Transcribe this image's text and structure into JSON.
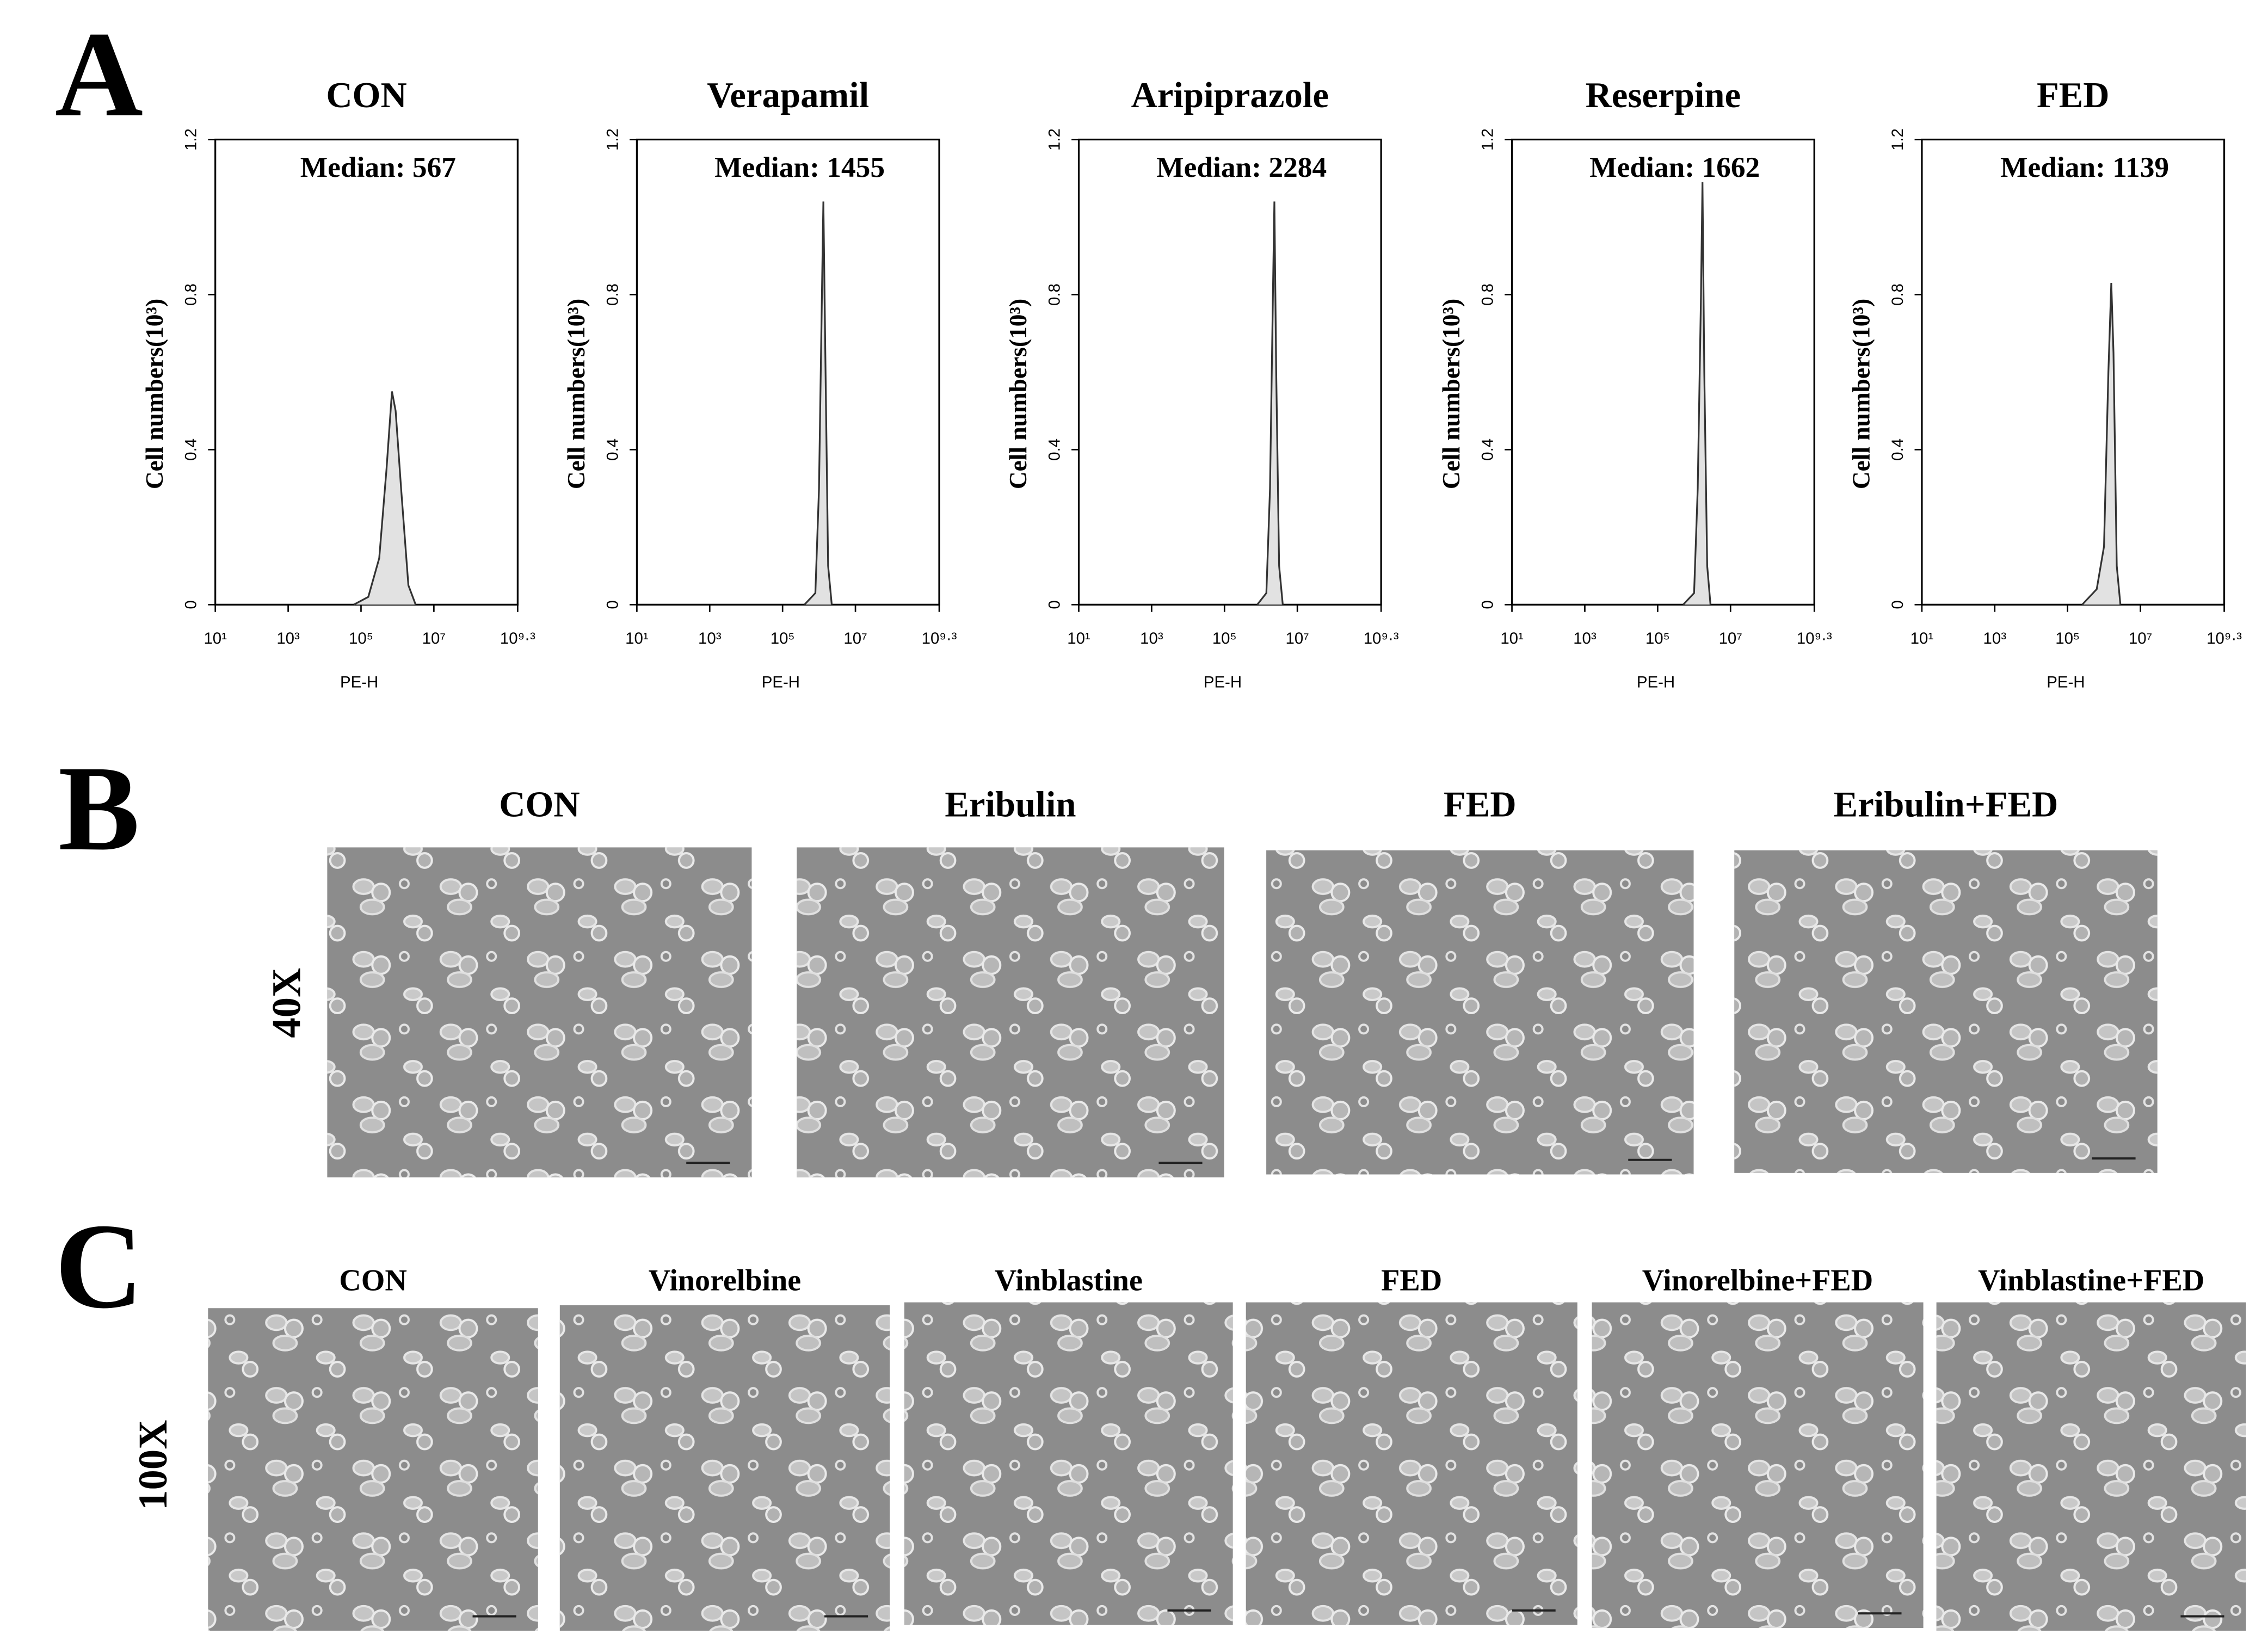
{
  "chart_data": [
    {
      "type": "area",
      "title": "CON",
      "annotation": "Median: 567",
      "y_label": "Cell numbers(10³)",
      "x_label": "PE-H",
      "xscale": "log",
      "color": "#e2e2e2",
      "line_color": "#333333",
      "x": [
        63096,
        158489,
        316228,
        501187,
        707946,
        891251,
        1258925,
        1995262,
        3162278
      ],
      "values": [
        0,
        0.02,
        0.12,
        0.35,
        0.55,
        0.5,
        0.3,
        0.05,
        0
      ],
      "xlim": [
        10,
        1995262315
      ],
      "xticks": [
        {
          "value": 10,
          "label": "10¹"
        },
        {
          "value": 1000,
          "label": "10³"
        },
        {
          "value": 100000,
          "label": "10⁵"
        },
        {
          "value": 10000000,
          "label": "10⁷"
        },
        {
          "value": 1995262315,
          "label": "10⁹·³"
        }
      ],
      "ylim": [
        0,
        1.2
      ],
      "yticks": [
        0,
        0.4,
        0.8,
        1.2
      ]
    },
    {
      "type": "area",
      "title": "Verapamil",
      "annotation": "Median: 1455",
      "y_label": "Cell numbers(10³)",
      "x_label": "PE-H",
      "xscale": "log",
      "color": "#e2e2e2",
      "line_color": "#333333",
      "x": [
        398107,
        794328,
        1000000,
        1202264,
        1318257,
        1513561,
        1778279,
        2238721
      ],
      "values": [
        0,
        0.03,
        0.3,
        0.8,
        1.04,
        0.6,
        0.1,
        0
      ],
      "xlim": [
        10,
        1995262315
      ],
      "xticks": [
        {
          "value": 10,
          "label": "10¹"
        },
        {
          "value": 1000,
          "label": "10³"
        },
        {
          "value": 100000,
          "label": "10⁵"
        },
        {
          "value": 10000000,
          "label": "10⁷"
        },
        {
          "value": 1995262315,
          "label": "10⁹·³"
        }
      ],
      "ylim": [
        0,
        1.2
      ],
      "yticks": [
        0,
        0.4,
        0.8,
        1.2
      ]
    },
    {
      "type": "area",
      "title": "Aripiprazole",
      "annotation": "Median: 2284",
      "y_label": "Cell numbers(10³)",
      "x_label": "PE-H",
      "xscale": "log",
      "color": "#e2e2e2",
      "line_color": "#333333",
      "x": [
        794328,
        1412538,
        1778279,
        2137962,
        2344229,
        2630268,
        3162278,
        3981072
      ],
      "values": [
        0,
        0.03,
        0.3,
        0.8,
        1.04,
        0.6,
        0.1,
        0
      ],
      "xlim": [
        10,
        1995262315
      ],
      "xticks": [
        {
          "value": 10,
          "label": "10¹"
        },
        {
          "value": 1000,
          "label": "10³"
        },
        {
          "value": 100000,
          "label": "10⁵"
        },
        {
          "value": 10000000,
          "label": "10⁷"
        },
        {
          "value": 1995262315,
          "label": "10⁹·³"
        }
      ],
      "ylim": [
        0,
        1.2
      ],
      "yticks": [
        0,
        0.4,
        0.8,
        1.2
      ]
    },
    {
      "type": "area",
      "title": "Reserpine",
      "annotation": "Median: 1662",
      "y_label": "Cell numbers(10³)",
      "x_label": "PE-H",
      "xscale": "log",
      "color": "#e2e2e2",
      "line_color": "#333333",
      "x": [
        501187,
        1000000,
        1258925,
        1548817,
        1698244,
        1905461,
        2290868,
        2818383
      ],
      "values": [
        0,
        0.03,
        0.3,
        0.8,
        1.09,
        0.6,
        0.1,
        0
      ],
      "xlim": [
        10,
        1995262315
      ],
      "xticks": [
        {
          "value": 10,
          "label": "10¹"
        },
        {
          "value": 1000,
          "label": "10³"
        },
        {
          "value": 100000,
          "label": "10⁵"
        },
        {
          "value": 10000000,
          "label": "10⁷"
        },
        {
          "value": 1995262315,
          "label": "10⁹·³"
        }
      ],
      "ylim": [
        0,
        1.2
      ],
      "yticks": [
        0,
        0.4,
        0.8,
        1.2
      ]
    },
    {
      "type": "area",
      "title": "FED",
      "annotation": "Median: 1139",
      "y_label": "Cell numbers(10³)",
      "x_label": "PE-H",
      "xscale": "log",
      "color": "#e2e2e2",
      "line_color": "#333333",
      "x": [
        251189,
        630957,
        1000000,
        1318257,
        1584893,
        1819701,
        2238721,
        2818383
      ],
      "values": [
        0,
        0.04,
        0.15,
        0.6,
        0.83,
        0.65,
        0.1,
        0
      ],
      "xlim": [
        10,
        1995262315
      ],
      "xticks": [
        {
          "value": 10,
          "label": "10¹"
        },
        {
          "value": 1000,
          "label": "10³"
        },
        {
          "value": 100000,
          "label": "10⁵"
        },
        {
          "value": 10000000,
          "label": "10⁷"
        },
        {
          "value": 1995262315,
          "label": "10⁹·³"
        }
      ],
      "ylim": [
        0,
        1.2
      ],
      "yticks": [
        0,
        0.4,
        0.8,
        1.2
      ]
    }
  ],
  "panel_labels": [
    "A",
    "B",
    "C"
  ],
  "panel_b": {
    "magnification": "40X",
    "titles": [
      "CON",
      "Eribulin",
      "FED",
      "Eribulin+FED"
    ]
  },
  "panel_c": {
    "magnification": "100X",
    "titles": [
      "CON",
      "Vinorelbine",
      "Vinblastine",
      "FED",
      "Vinorelbine+FED",
      "Vinblastine+FED"
    ]
  }
}
